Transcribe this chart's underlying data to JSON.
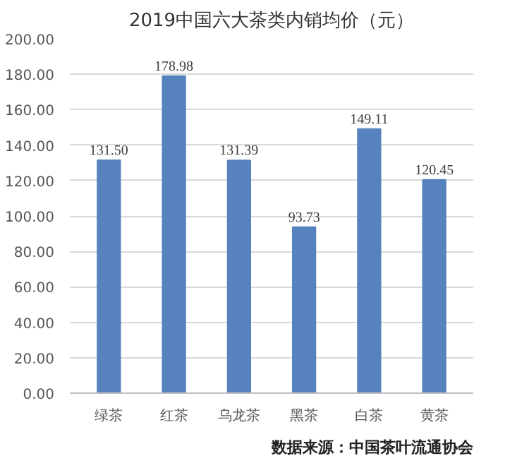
{
  "chart_data": {
    "type": "bar",
    "title": "2019中国六大茶类内销均价（元）",
    "categories": [
      "绿茶",
      "红茶",
      "乌龙茶",
      "黑茶",
      "白茶",
      "黄茶"
    ],
    "values": [
      131.5,
      178.98,
      131.39,
      93.73,
      149.11,
      120.45
    ],
    "value_labels": [
      "131.50",
      "178.98",
      "131.39",
      "93.73",
      "149.11",
      "120.45"
    ],
    "color": "#5682be",
    "ylim": [
      0,
      200
    ],
    "yticks": [
      {
        "value": 0,
        "label": "0.00"
      },
      {
        "value": 20,
        "label": "20.00"
      },
      {
        "value": 40,
        "label": "40.00"
      },
      {
        "value": 60,
        "label": "60.00"
      },
      {
        "value": 80,
        "label": "80.00"
      },
      {
        "value": 100,
        "label": "100.00"
      },
      {
        "value": 120,
        "label": "120.00"
      },
      {
        "value": 140,
        "label": "140.00"
      },
      {
        "value": 160,
        "label": "160.00"
      },
      {
        "value": 180,
        "label": "180.00"
      },
      {
        "value": 200,
        "label": "200.00"
      }
    ],
    "grid": "y",
    "annotations": [
      "数据来源：中国茶叶流通协会"
    ]
  }
}
